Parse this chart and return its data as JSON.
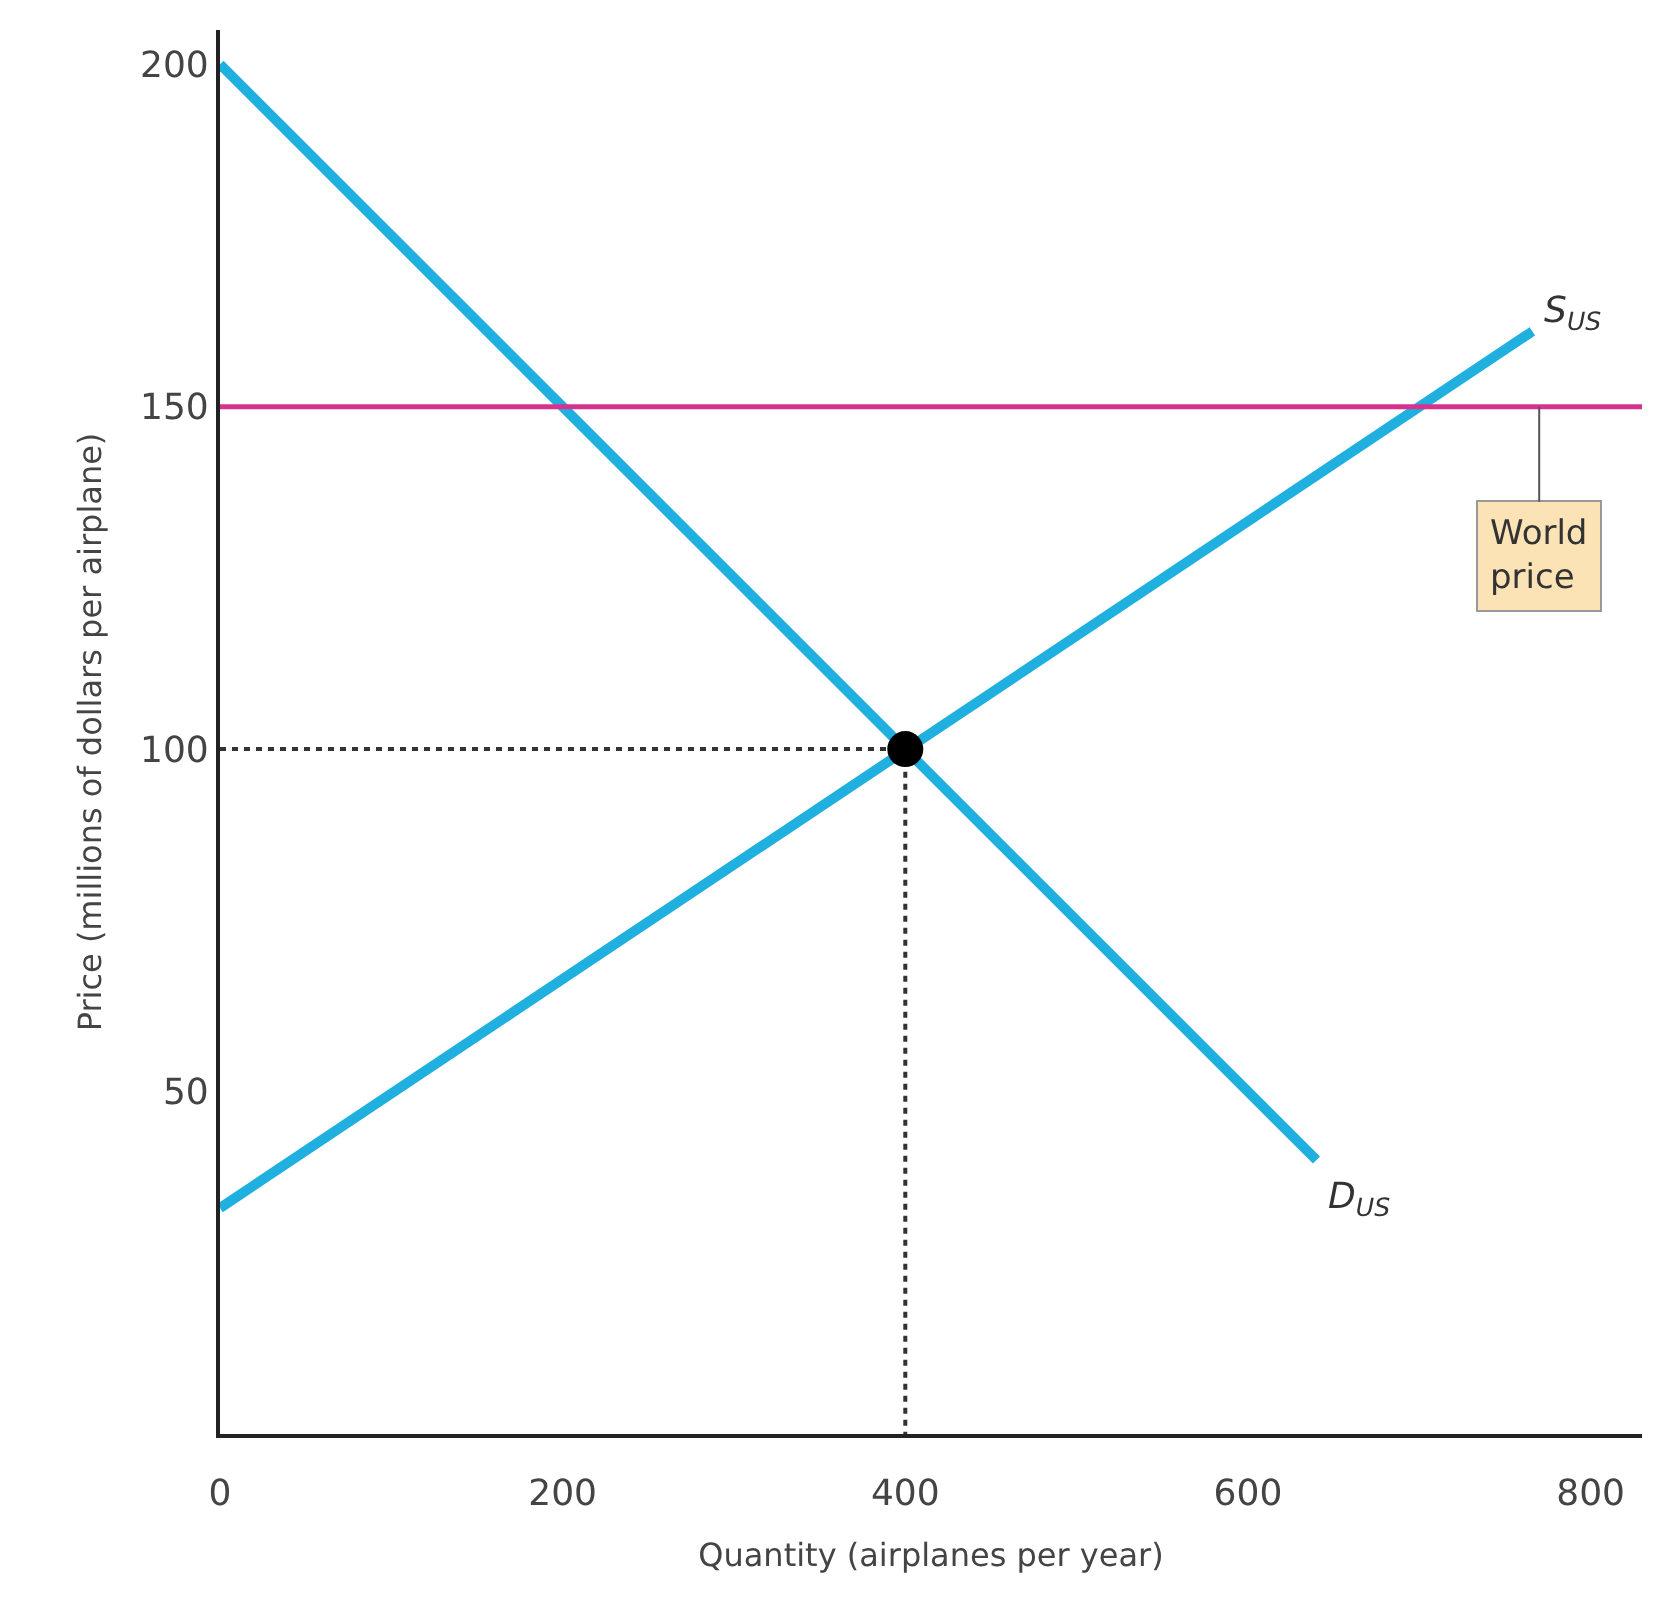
{
  "chart_data": {
    "type": "line",
    "xlabel": "Quantity (airplanes per year)",
    "ylabel": "Price (millions of dollars per airplane)",
    "xlim": [
      0,
      830
    ],
    "ylim": [
      0,
      205
    ],
    "xticks": [
      0,
      200,
      400,
      600,
      800
    ],
    "yticks": [
      50,
      100,
      150,
      200
    ],
    "marker": "none",
    "line_style": "solid",
    "series": [
      {
        "x": [
          0,
          640
        ],
        "values": [
          200,
          40
        ],
        "color": "#1fb0e0"
      },
      {
        "x": [
          0,
          766
        ],
        "values": [
          33,
          161
        ],
        "color": "#1fb0e0"
      },
      {
        "line_style": "dotted",
        "x": [
          0,
          400,
          400
        ],
        "values": [
          100,
          100,
          0
        ],
        "color": "#333333"
      },
      {
        "type": "scatter",
        "marker": "circle",
        "x": [
          400
        ],
        "values": [
          100
        ],
        "color": "#000000"
      }
    ],
    "ref_lines": [
      {
        "axis": "y",
        "value": 150,
        "color": "#d6338f"
      }
    ],
    "annotations": [
      {
        "text": "S$_{US}$",
        "x": 766,
        "y": 161
      },
      {
        "text": "D$_{US}$",
        "x": 640,
        "y": 40
      },
      {
        "text": "World\nprice",
        "x": 770,
        "y": 150
      }
    ]
  }
}
